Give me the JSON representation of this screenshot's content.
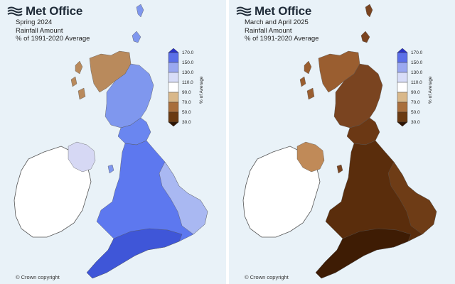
{
  "left_panel": {
    "brand": "Met Office",
    "caption": [
      "Spring 2024",
      "Rainfall Amount",
      "% of 1991-2020 Average"
    ],
    "copyright": "© Crown copyright",
    "colors": {
      "scotland_north": "#b98a5c",
      "scotland_main": "#7f97ee",
      "scotland_east": "#6a86f0",
      "northern_ireland": "#d6d8f4",
      "england_wales": "#5d78ef",
      "england_south": "#3f56d8",
      "england_east": "#a9b8f2",
      "ireland": "#ffffff"
    }
  },
  "right_panel": {
    "brand": "Met Office",
    "caption": [
      "March and April 2025",
      "Rainfall Amount",
      "% of 1991-2020 Average"
    ],
    "copyright": "© Crown copyright",
    "colors": {
      "scotland_north": "#9a5e30",
      "scotland_main": "#7a4420",
      "scotland_east": "#6b3814",
      "northern_ireland": "#c08a58",
      "england_wales": "#5a2d0c",
      "england_south": "#3e1c04",
      "england_east": "#6e3c16",
      "ireland": "#ffffff"
    }
  },
  "legend": {
    "title": "% of Average",
    "ticks": [
      "170.0",
      "150.0",
      "130.0",
      "110.0",
      "90.0",
      "70.0",
      "50.0",
      "30.0"
    ],
    "band_colors": [
      "#2a32c8",
      "#5b6fe8",
      "#9aa8f0",
      "#d8ddf8",
      "#ffffff",
      "#d9b88a",
      "#a86e3c",
      "#6a3a12",
      "#2e1402"
    ]
  }
}
